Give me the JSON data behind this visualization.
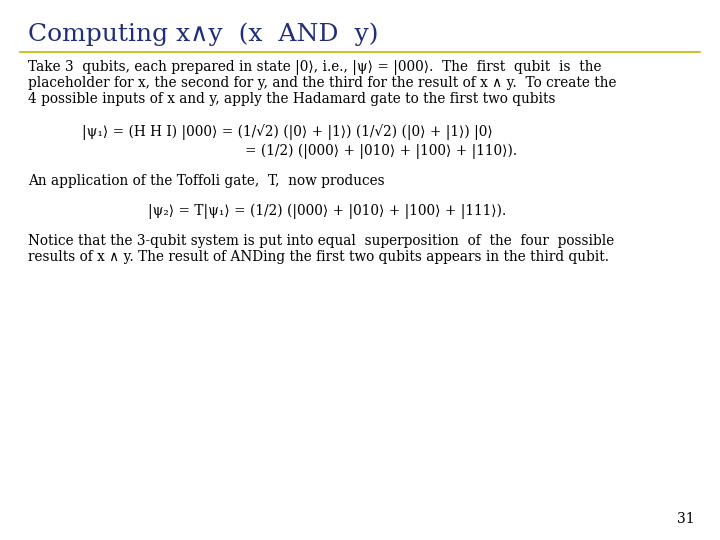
{
  "bg_color": "#ffffff",
  "title_color": "#1f2d7b",
  "title_text": "Computing x∧y  (x  AND  y)",
  "line_color": "#c8b400",
  "body_color": "#000000",
  "page_number": "31",
  "para1_l1": "Take 3  qubits, each prepared in state |0⟩, i.e., |ψ⟩ = |000⟩.  The  first  qubit  is  the",
  "para1_l2": "placeholder for x, the second for y, and the third for the result of x ∧ y.  To create the",
  "para1_l3": "4 possible inputs of x and y, apply the Hadamard gate to the first two qubits",
  "eq1_line1": "|ψ₁⟩ = (H H I) |000⟩ = (1/√2) (|0⟩ + |1⟩) (1/√2) (|0⟩ + |1⟩) |0⟩",
  "eq1_line2": "= (1/2) (|000⟩ + |010⟩ + |100⟩ + |110⟩).",
  "para2": "An application of the Toffoli gate,  T,  now produces",
  "eq2": "|ψ₂⟩ = T|ψ₁⟩ = (1/2) (|000⟩ + |010⟩ + |100⟩ + |111⟩).",
  "para3_l1": "Notice that the 3-qubit system is put into equal  superposition  of  the  four  possible",
  "para3_l2": "results of x ∧ y. The result of ANDing the first two qubits appears in the third qubit.",
  "title_fontsize": 18,
  "body_fontsize": 9.8,
  "eq_fontsize": 9.8
}
